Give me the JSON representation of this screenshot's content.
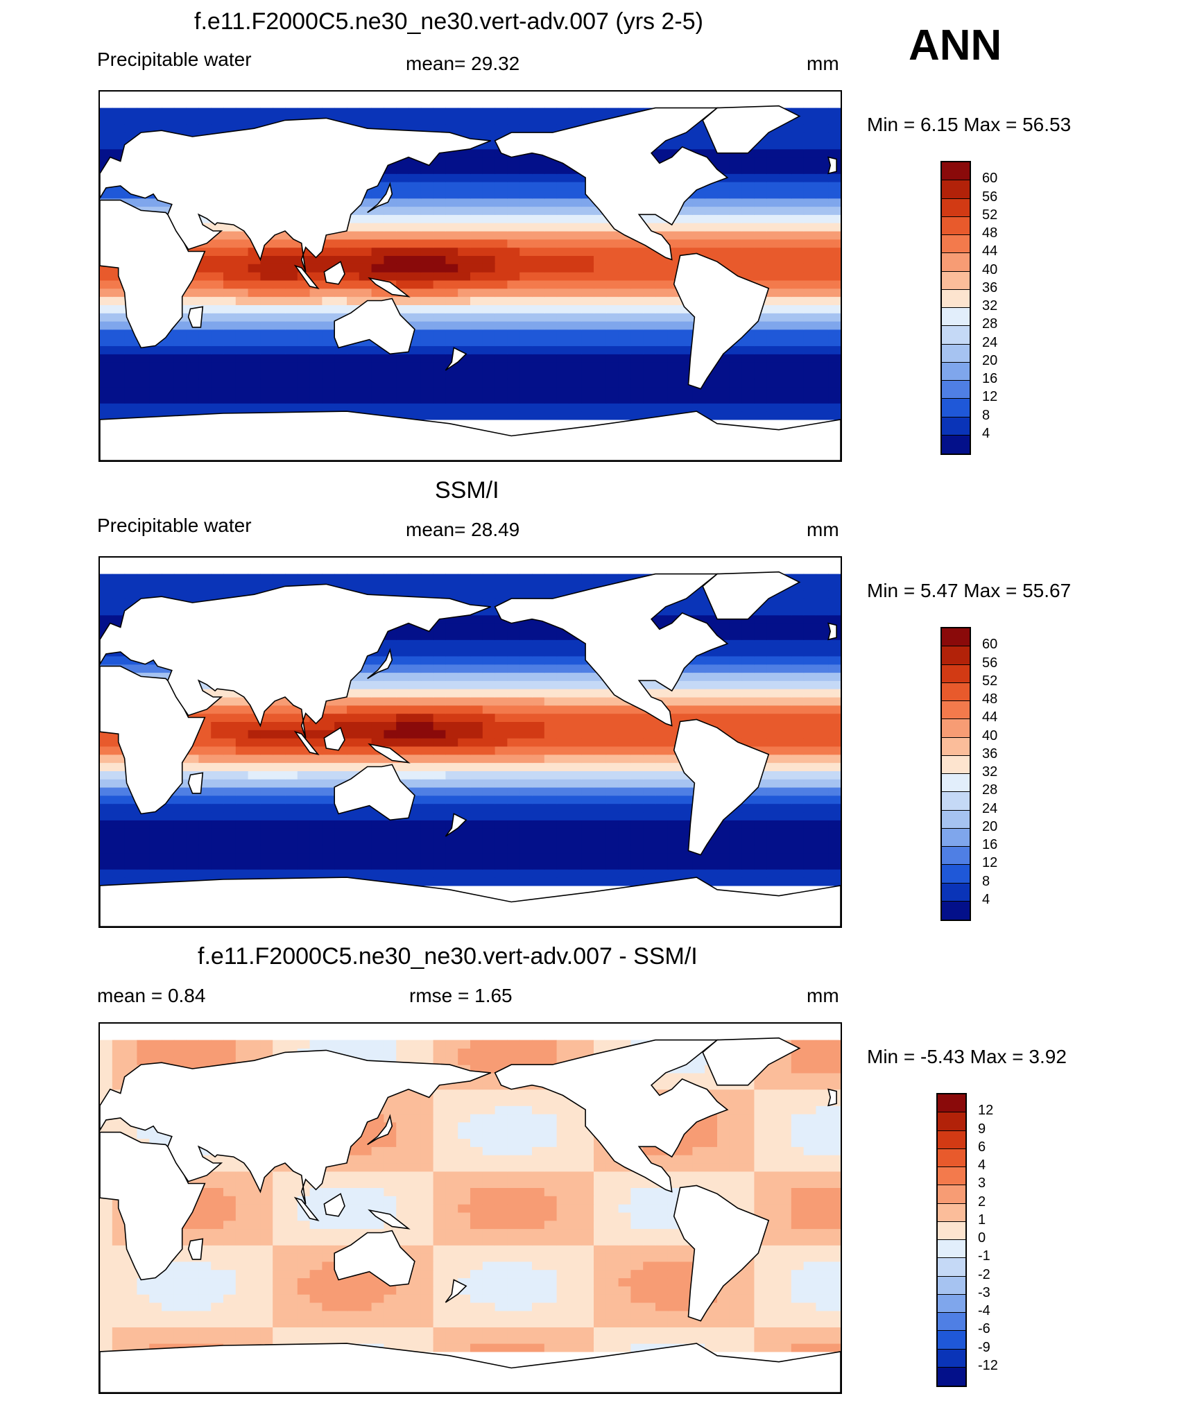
{
  "season": "ANN",
  "units": "mm",
  "panels": [
    {
      "title": "f.e11.F2000C5.ne30_ne30.vert-adv.007 (yrs 2-5)",
      "left_label": "Precipitable water",
      "center_label": "mean=  29.32",
      "right_label": "mm",
      "minmax": "Min =    6.15 Max =   56.53",
      "kind": "abs",
      "colorbar": {
        "labels": [
          "60",
          "56",
          "52",
          "48",
          "44",
          "40",
          "36",
          "32",
          "28",
          "24",
          "20",
          "16",
          "12",
          "8",
          "4"
        ],
        "colors": [
          "#8a0a0a",
          "#b22209",
          "#d23a14",
          "#e85a2c",
          "#f37a4c",
          "#f79c74",
          "#fbbd9a",
          "#fde4cf",
          "#e2eefb",
          "#c5d9f6",
          "#a6c3f1",
          "#7fa6ec",
          "#4f7fe4",
          "#1f58d8",
          "#0a34b8",
          "#03108a"
        ]
      }
    },
    {
      "title": "SSM/I",
      "left_label": "Precipitable water",
      "center_label": "mean=  28.49",
      "right_label": "mm",
      "minmax": "Min =    5.47 Max =   55.67",
      "kind": "obs",
      "colorbar": {
        "labels": [
          "60",
          "56",
          "52",
          "48",
          "44",
          "40",
          "36",
          "32",
          "28",
          "24",
          "20",
          "16",
          "12",
          "8",
          "4"
        ],
        "colors": [
          "#8a0a0a",
          "#b22209",
          "#d23a14",
          "#e85a2c",
          "#f37a4c",
          "#f79c74",
          "#fbbd9a",
          "#fde4cf",
          "#e2eefb",
          "#c5d9f6",
          "#a6c3f1",
          "#7fa6ec",
          "#4f7fe4",
          "#1f58d8",
          "#0a34b8",
          "#03108a"
        ]
      }
    },
    {
      "title": "f.e11.F2000C5.ne30_ne30.vert-adv.007 - SSM/I",
      "left_label": "mean =   0.84",
      "center_label": "rmse =   1.65",
      "right_label": "mm",
      "minmax": "Min =  -5.43 Max =    3.92",
      "kind": "diff",
      "colorbar": {
        "labels": [
          "12",
          "9",
          "6",
          "4",
          "3",
          "2",
          "1",
          "0",
          "-1",
          "-2",
          "-3",
          "-4",
          "-6",
          "-9",
          "-12"
        ],
        "colors": [
          "#8a0a0a",
          "#b22209",
          "#d23a14",
          "#e85a2c",
          "#f37a4c",
          "#f79c74",
          "#fbbd9a",
          "#fde4cf",
          "#e2eefb",
          "#c5d9f6",
          "#a6c3f1",
          "#7fa6ec",
          "#4f7fe4",
          "#1f58d8",
          "#0a34b8",
          "#03108a"
        ]
      }
    }
  ]
}
